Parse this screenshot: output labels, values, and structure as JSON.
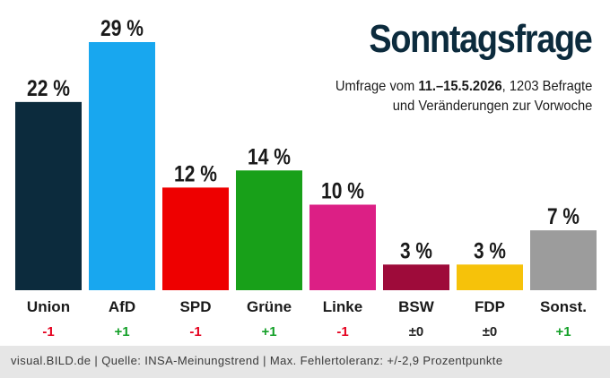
{
  "header": {
    "title": "Sonntagsfrage",
    "subtitle_prefix": "Umfrage vom ",
    "subtitle_dates": "11.–15.5.2026",
    "subtitle_suffix": ", 1203 Befragte",
    "subtitle_line2": "und Veränderungen zur Vorwoche"
  },
  "footer": {
    "source": "visual.BILD.de | Quelle: INSA-Meinungstrend | Max. Fehlertoleranz: +/-2,9 Prozentpunkte"
  },
  "colors": {
    "positive": "#14a028",
    "negative": "#e5001e",
    "neutral": "#222222",
    "title": "#0c2b3d"
  },
  "chart_data": {
    "type": "bar",
    "unit": "%",
    "ylim": [
      0,
      30
    ],
    "grid": false,
    "legend": "none",
    "categories": [
      "Union",
      "AfD",
      "SPD",
      "Grüne",
      "Linke",
      "BSW",
      "FDP",
      "Sonst."
    ],
    "values": [
      22,
      29,
      12,
      14,
      10,
      3,
      3,
      7
    ],
    "value_labels": [
      "22 %",
      "29 %",
      "12 %",
      "14 %",
      "10 %",
      "3 %",
      "3 %",
      "7 %"
    ],
    "changes": [
      "-1",
      "+1",
      "-1",
      "+1",
      "-1",
      "±0",
      "±0",
      "+1"
    ],
    "bar_colors": [
      "#0c2b3d",
      "#18a7ef",
      "#ee0000",
      "#18a019",
      "#dc1f85",
      "#9e0b3a",
      "#f6c20a",
      "#9c9c9c"
    ]
  }
}
